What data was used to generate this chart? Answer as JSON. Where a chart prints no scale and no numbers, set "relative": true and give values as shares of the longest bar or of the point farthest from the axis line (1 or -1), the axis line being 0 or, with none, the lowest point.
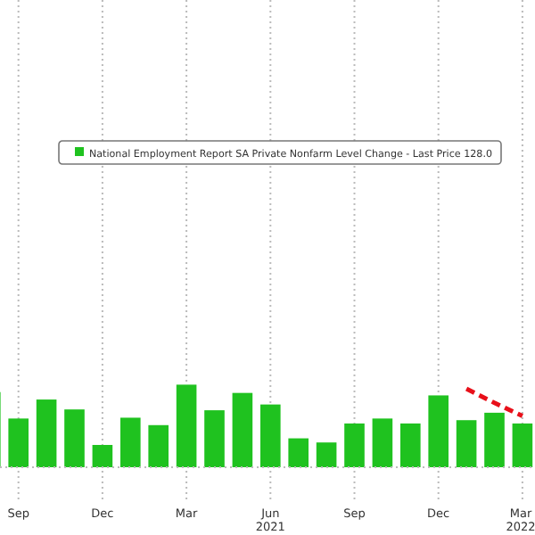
{
  "chart_data": {
    "type": "bar",
    "relative": true,
    "categories": [
      null,
      "Sep",
      null,
      null,
      "Dec",
      null,
      null,
      "Mar",
      null,
      null,
      "Jun 2021",
      null,
      null,
      "Sep",
      null,
      null,
      "Dec",
      null,
      null,
      "Mar 2022"
    ],
    "series": [
      {
        "name": "National Employment Report SA Private Nonfarm Level Change - Last Price 128.0",
        "color": "#1fc21f",
        "values": [
          0.91,
          0.59,
          0.82,
          0.7,
          0.27,
          0.6,
          0.51,
          1,
          0.69,
          0.9,
          0.76,
          0.35,
          0.3,
          0.53,
          0.59,
          0.53,
          0.87,
          0.57,
          0.66,
          0.53
        ]
      },
      {
        "type": "line",
        "color": "#e8101a",
        "line_style": "dashed",
        "values": [
          null,
          null,
          null,
          null,
          null,
          null,
          null,
          null,
          null,
          null,
          null,
          null,
          null,
          null,
          null,
          null,
          null,
          0.95,
          0.78,
          0.62
        ]
      }
    ],
    "grid": "x",
    "legend": "top"
  }
}
